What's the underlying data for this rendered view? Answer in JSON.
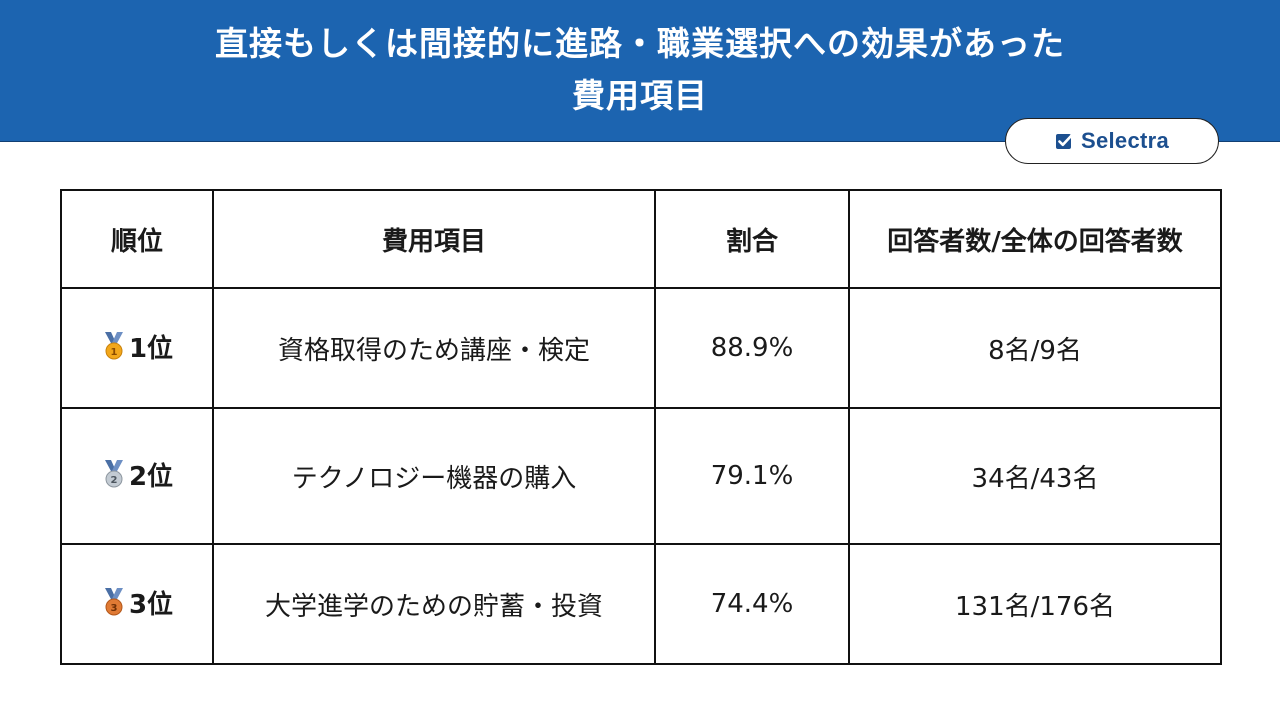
{
  "header": {
    "title_line1": "直接もしくは間接的に進路・職業選択への効果があった",
    "title_line2": "費用項目",
    "bg_color": "#1c64b0"
  },
  "brand": {
    "name": "Selectra",
    "icon": "checkbox-icon",
    "color": "#1c4f8f"
  },
  "table": {
    "headers": [
      "順位",
      "費用項目",
      "割合",
      "回答者数/全体の回答者数"
    ],
    "rows": [
      {
        "medal": "gold-medal-icon",
        "rank": "1位",
        "item": "資格取得のため講座・検定",
        "ratio": "88.9%",
        "count": "8名/9名"
      },
      {
        "medal": "silver-medal-icon",
        "rank": "2位",
        "item": "テクノロジー機器の購入",
        "ratio": "79.1%",
        "count": "34名/43名"
      },
      {
        "medal": "bronze-medal-icon",
        "rank": "3位",
        "item": "大学進学のための貯蓄・投資",
        "ratio": "74.4%",
        "count": "131名/176名"
      }
    ]
  },
  "colors": {
    "gold": "#f2a71b",
    "silver": "#a9b3bd",
    "bronze": "#d9722b",
    "ribbon": "#4a6fa5"
  }
}
